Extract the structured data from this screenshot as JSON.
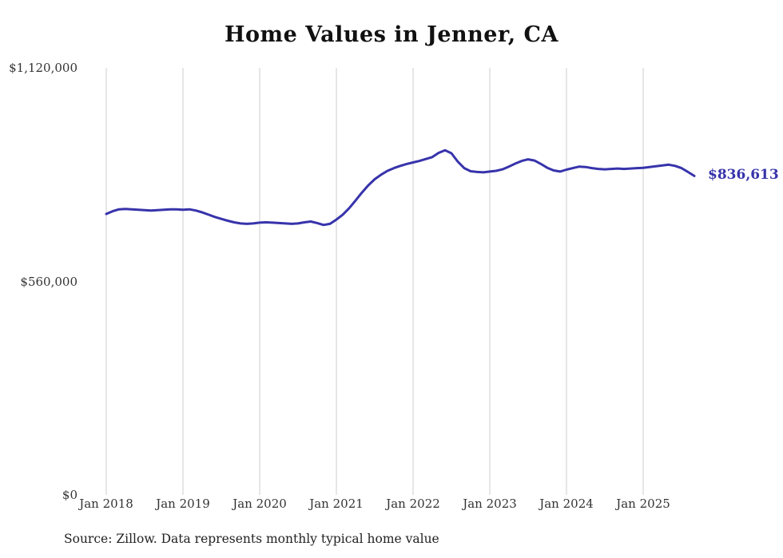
{
  "chart_data": {
    "type": "line",
    "title": "Home Values in Jenner, CA",
    "source_note": "Source: Zillow. Data represents monthly typical home value",
    "series_name": "Monthly typical home value",
    "x": [
      "2018-01",
      "2018-02",
      "2018-03",
      "2018-04",
      "2018-05",
      "2018-06",
      "2018-07",
      "2018-08",
      "2018-09",
      "2018-10",
      "2018-11",
      "2018-12",
      "2019-01",
      "2019-02",
      "2019-03",
      "2019-04",
      "2019-05",
      "2019-06",
      "2019-07",
      "2019-08",
      "2019-09",
      "2019-10",
      "2019-11",
      "2019-12",
      "2020-01",
      "2020-02",
      "2020-03",
      "2020-04",
      "2020-05",
      "2020-06",
      "2020-07",
      "2020-08",
      "2020-09",
      "2020-10",
      "2020-11",
      "2020-12",
      "2021-01",
      "2021-02",
      "2021-03",
      "2021-04",
      "2021-05",
      "2021-06",
      "2021-07",
      "2021-08",
      "2021-09",
      "2021-10",
      "2021-11",
      "2021-12",
      "2022-01",
      "2022-02",
      "2022-03",
      "2022-04",
      "2022-05",
      "2022-06",
      "2022-07",
      "2022-08",
      "2022-09",
      "2022-10",
      "2022-11",
      "2022-12",
      "2023-01",
      "2023-02",
      "2023-03",
      "2023-04",
      "2023-05",
      "2023-06",
      "2023-07",
      "2023-08",
      "2023-09",
      "2023-10",
      "2023-11",
      "2023-12",
      "2024-01",
      "2024-02",
      "2024-03",
      "2024-04",
      "2024-05",
      "2024-06",
      "2024-07",
      "2024-08",
      "2024-09",
      "2024-10",
      "2024-11",
      "2024-12",
      "2025-01",
      "2025-02",
      "2025-03",
      "2025-04",
      "2025-05",
      "2025-06",
      "2025-07",
      "2025-08",
      "2025-09"
    ],
    "values": [
      737000,
      744000,
      749000,
      750000,
      749000,
      748000,
      747000,
      746000,
      747000,
      748000,
      749000,
      749000,
      748000,
      749000,
      746000,
      741000,
      735000,
      729000,
      724000,
      719000,
      715000,
      712000,
      711000,
      712000,
      714000,
      715000,
      714000,
      713000,
      712000,
      711000,
      712000,
      715000,
      717000,
      713000,
      708000,
      711000,
      722000,
      735000,
      752000,
      772000,
      793000,
      812000,
      828000,
      840000,
      850000,
      857000,
      863000,
      868000,
      872000,
      876000,
      881000,
      886000,
      897000,
      904000,
      896000,
      874000,
      857000,
      849000,
      847000,
      846000,
      848000,
      850000,
      854000,
      861000,
      869000,
      876000,
      880000,
      877000,
      868000,
      858000,
      851000,
      848000,
      853000,
      857000,
      861000,
      860000,
      857000,
      855000,
      854000,
      855000,
      856000,
      855000,
      856000,
      857000,
      858000,
      860000,
      862000,
      864000,
      866000,
      863000,
      857000,
      847000,
      836613
    ],
    "ylim": [
      0,
      1120000
    ],
    "y_tick_values": [
      0,
      560000,
      1120000
    ],
    "y_tick_labels": [
      "$0",
      "$560,000",
      "$1,120,000"
    ],
    "x_tick_labels": [
      "Jan 2018",
      "Jan 2019",
      "Jan 2020",
      "Jan 2021",
      "Jan 2022",
      "Jan 2023",
      "Jan 2024",
      "Jan 2025"
    ],
    "final_value_label": "$836,613",
    "line_color": "#3733ab",
    "grid_color": "#cccccc",
    "grid": "vertical-only",
    "legend": "none"
  }
}
